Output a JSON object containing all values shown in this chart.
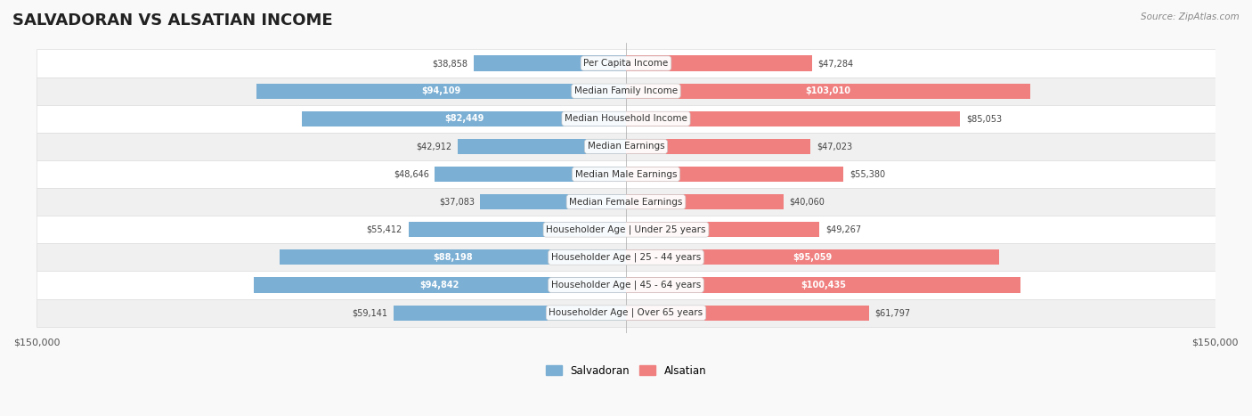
{
  "title": "SALVADORAN VS ALSATIAN INCOME",
  "source": "Source: ZipAtlas.com",
  "categories": [
    "Per Capita Income",
    "Median Family Income",
    "Median Household Income",
    "Median Earnings",
    "Median Male Earnings",
    "Median Female Earnings",
    "Householder Age | Under 25 years",
    "Householder Age | 25 - 44 years",
    "Householder Age | 45 - 64 years",
    "Householder Age | Over 65 years"
  ],
  "salvadoran": [
    38858,
    94109,
    82449,
    42912,
    48646,
    37083,
    55412,
    88198,
    94842,
    59141
  ],
  "alsatian": [
    47284,
    103010,
    85053,
    47023,
    55380,
    40060,
    49267,
    95059,
    100435,
    61797
  ],
  "salvadoran_labels": [
    "$38,858",
    "$94,109",
    "$82,449",
    "$42,912",
    "$48,646",
    "$37,083",
    "$55,412",
    "$88,198",
    "$94,842",
    "$59,141"
  ],
  "alsatian_labels": [
    "$47,284",
    "$103,010",
    "$85,053",
    "$47,023",
    "$55,380",
    "$40,060",
    "$49,267",
    "$95,059",
    "$100,435",
    "$61,797"
  ],
  "salvadoran_color": "#7bafd4",
  "alsatian_color": "#f08080",
  "salvadoran_label_inside": [
    false,
    true,
    true,
    false,
    false,
    false,
    false,
    true,
    true,
    false
  ],
  "alsatian_label_inside": [
    false,
    true,
    false,
    false,
    false,
    false,
    false,
    true,
    true,
    false
  ],
  "x_max": 150000,
  "bar_height": 0.55,
  "background_color": "#f5f5f5",
  "row_background": "#ebebeb",
  "legend_salvadoran": "Salvadoran",
  "legend_alsatian": "Alsatian",
  "xlabel_left": "$150,000",
  "xlabel_right": "$150,000"
}
